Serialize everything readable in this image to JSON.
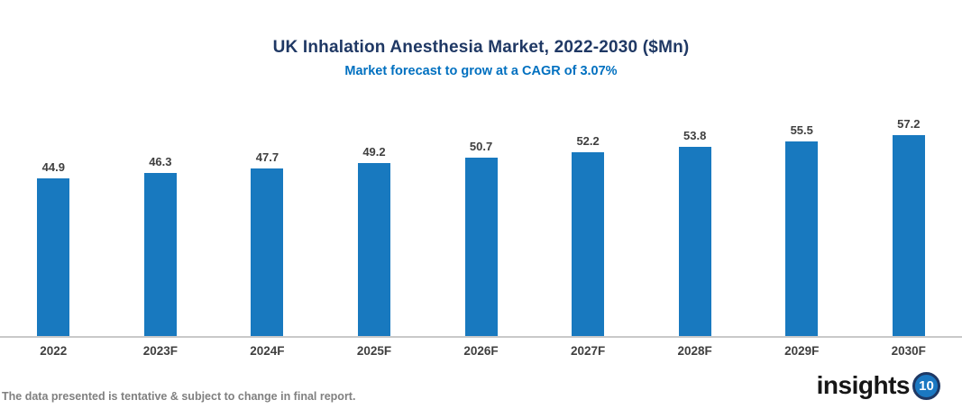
{
  "header": {
    "title": "UK Inhalation Anesthesia Market, 2022-2030 ($Mn)",
    "subtitle": "Market forecast to grow at a CAGR of 3.07%"
  },
  "chart_data": {
    "type": "bar",
    "title": "UK Inhalation Anesthesia Market, 2022-2030 ($Mn)",
    "subtitle": "Market forecast to grow at a CAGR of 3.07%",
    "categories": [
      "2022",
      "2023F",
      "2024F",
      "2025F",
      "2026F",
      "2027F",
      "2028F",
      "2029F",
      "2030F"
    ],
    "values": [
      44.9,
      46.3,
      47.7,
      49.2,
      50.7,
      52.2,
      53.8,
      55.5,
      57.2
    ],
    "xlabel": "",
    "ylabel": "",
    "ylim": [
      0,
      70
    ],
    "grid": false,
    "legend": false,
    "data_labels": true,
    "colors": {
      "bar": "#1879BF",
      "title": "#1F3864",
      "subtitle": "#0070C0",
      "labels": "#3F3F3F",
      "axis_line": "#C9C9C9"
    }
  },
  "footer": {
    "disclaimer": "The data presented is tentative & subject to change in final report.",
    "logo_text": "insights",
    "logo_badge": "10",
    "logo_badge_color": "#1B78C2"
  }
}
